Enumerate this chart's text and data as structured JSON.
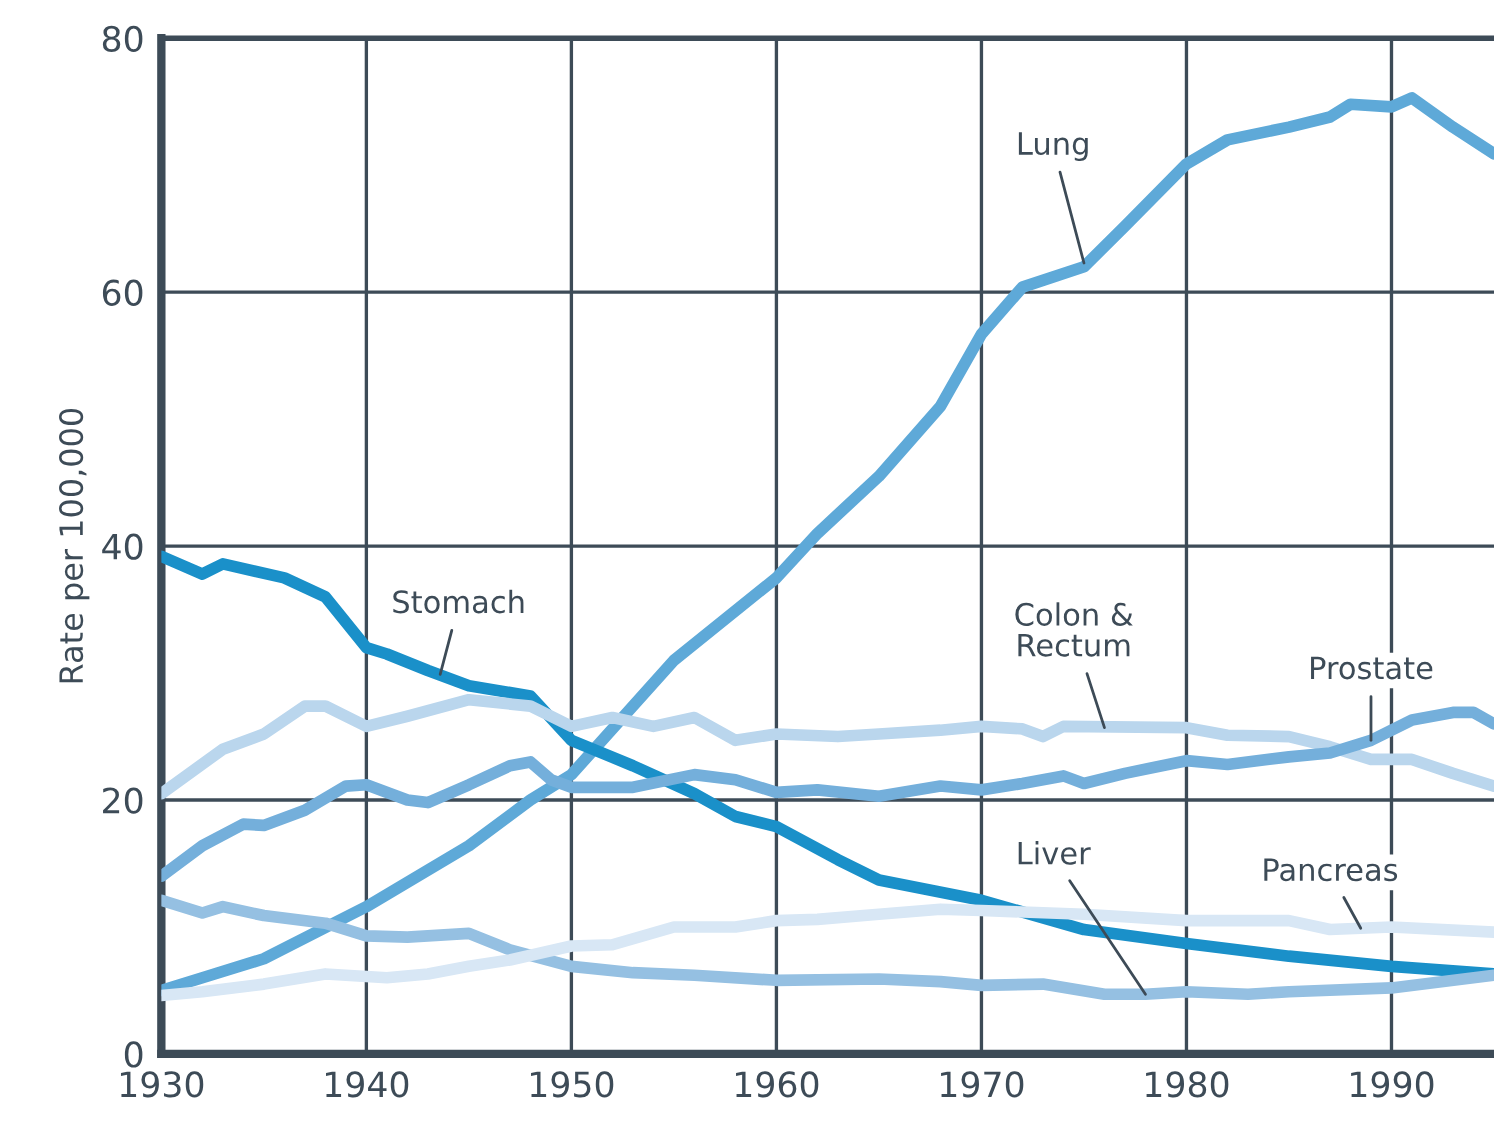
{
  "chart_data": {
    "type": "line",
    "ylabel": "Rate per 100,000",
    "xlim": [
      1930,
      1995
    ],
    "xticks": [
      1930,
      1940,
      1950,
      1960,
      1970,
      1980,
      1990
    ],
    "ylim": [
      0,
      80
    ],
    "yticks": [
      0,
      20,
      40,
      60,
      80
    ],
    "grid": true,
    "legend": false,
    "marker": "none",
    "line_style": "solid",
    "series": [
      {
        "name": "Lung",
        "color": "#5ea9d8",
        "x": [
          1930,
          1932,
          1935,
          1940,
          1945,
          1948,
          1950,
          1955,
          1960,
          1962,
          1965,
          1968,
          1970,
          1972,
          1975,
          1977,
          1980,
          1982,
          1985,
          1987,
          1988,
          1990,
          1991,
          1993,
          1995
        ],
        "values": [
          5.0,
          6,
          7.5,
          11.6,
          16.4,
          20,
          22,
          31,
          37.5,
          41,
          45.5,
          51,
          56.7,
          60.4,
          62,
          65.2,
          70.1,
          72,
          73.0,
          73.8,
          74.8,
          74.6,
          75.3,
          73,
          70.9
        ]
      },
      {
        "name": "Stomach",
        "color": "#1a90c9",
        "x": [
          1930,
          1932,
          1933,
          1936,
          1938,
          1940,
          1941,
          1943,
          1945,
          1948,
          1950,
          1953,
          1956,
          1958,
          1960,
          1963,
          1965,
          1970,
          1975,
          1980,
          1985,
          1990,
          1995
        ],
        "values": [
          39.2,
          37.8,
          38.6,
          37.5,
          36,
          32,
          31.5,
          30.2,
          29,
          28.2,
          24.7,
          22.7,
          20.5,
          18.7,
          17.9,
          15.3,
          13.7,
          12.1,
          9.8,
          8.7,
          7.7,
          6.9,
          6.3
        ]
      },
      {
        "name": "Colon &\nRectum",
        "color": "#bad6ed",
        "x": [
          1930,
          1933,
          1935,
          1937,
          1938,
          1940,
          1942,
          1945,
          1948,
          1950,
          1952,
          1954,
          1956,
          1958,
          1960,
          1963,
          1965,
          1968,
          1970,
          1972,
          1973,
          1974,
          1980,
          1982,
          1985,
          1987,
          1989,
          1991,
          1993,
          1995
        ],
        "values": [
          20.5,
          24,
          25.2,
          27.4,
          27.4,
          25.8,
          26.6,
          27.9,
          27.4,
          25.8,
          26.5,
          25.8,
          26.5,
          24.7,
          25.2,
          25,
          25.2,
          25.5,
          25.8,
          25.6,
          25,
          25.8,
          25.7,
          25.1,
          25,
          24.2,
          23.2,
          23.2,
          22.1,
          21.1
        ]
      },
      {
        "name": "Prostate",
        "color": "#74afdb",
        "x": [
          1930,
          1932,
          1934,
          1935,
          1937,
          1939,
          1940,
          1942,
          1943,
          1945,
          1947,
          1948,
          1949,
          1950,
          1953,
          1956,
          1958,
          1960,
          1962,
          1965,
          1968,
          1970,
          1972,
          1974,
          1975,
          1977,
          1980,
          1982,
          1985,
          1987,
          1989,
          1991,
          1993,
          1994,
          1995
        ],
        "values": [
          14,
          16.4,
          18.1,
          18,
          19.2,
          21.1,
          21.2,
          20,
          19.8,
          21.2,
          22.7,
          23,
          21.6,
          21.0,
          21.0,
          22,
          21.6,
          20.6,
          20.8,
          20.3,
          21.1,
          20.8,
          21.3,
          21.9,
          21.3,
          22.1,
          23.1,
          22.8,
          23.4,
          23.7,
          24.7,
          26.3,
          26.9,
          26.9,
          26
        ]
      },
      {
        "name": "Liver",
        "color": "#95c0e2",
        "x": [
          1930,
          1932,
          1933,
          1935,
          1938,
          1940,
          1942,
          1945,
          1947,
          1950,
          1953,
          1956,
          1960,
          1965,
          1968,
          1970,
          1973,
          1976,
          1978,
          1980,
          1983,
          1985,
          1990,
          1995
        ],
        "values": [
          12.1,
          11.1,
          11.6,
          10.9,
          10.3,
          9.3,
          9.2,
          9.5,
          8.2,
          6.9,
          6.4,
          6.2,
          5.8,
          5.9,
          5.7,
          5.4,
          5.5,
          4.7,
          4.7,
          4.9,
          4.7,
          4.9,
          5.2,
          6.2
        ]
      },
      {
        "name": "Pancreas",
        "color": "#d8e7f5",
        "x": [
          1930,
          1932,
          1935,
          1938,
          1941,
          1943,
          1945,
          1947,
          1950,
          1952,
          1955,
          1958,
          1960,
          1962,
          1965,
          1968,
          1970,
          1975,
          1980,
          1985,
          1987,
          1990,
          1995
        ],
        "values": [
          4.6,
          4.9,
          5.5,
          6.3,
          6.0,
          6.3,
          6.9,
          7.4,
          8.5,
          8.6,
          10.0,
          10,
          10.5,
          10.6,
          11.0,
          11.4,
          11.3,
          11.0,
          10.5,
          10.5,
          9.8,
          10.0,
          9.6
        ]
      }
    ]
  }
}
